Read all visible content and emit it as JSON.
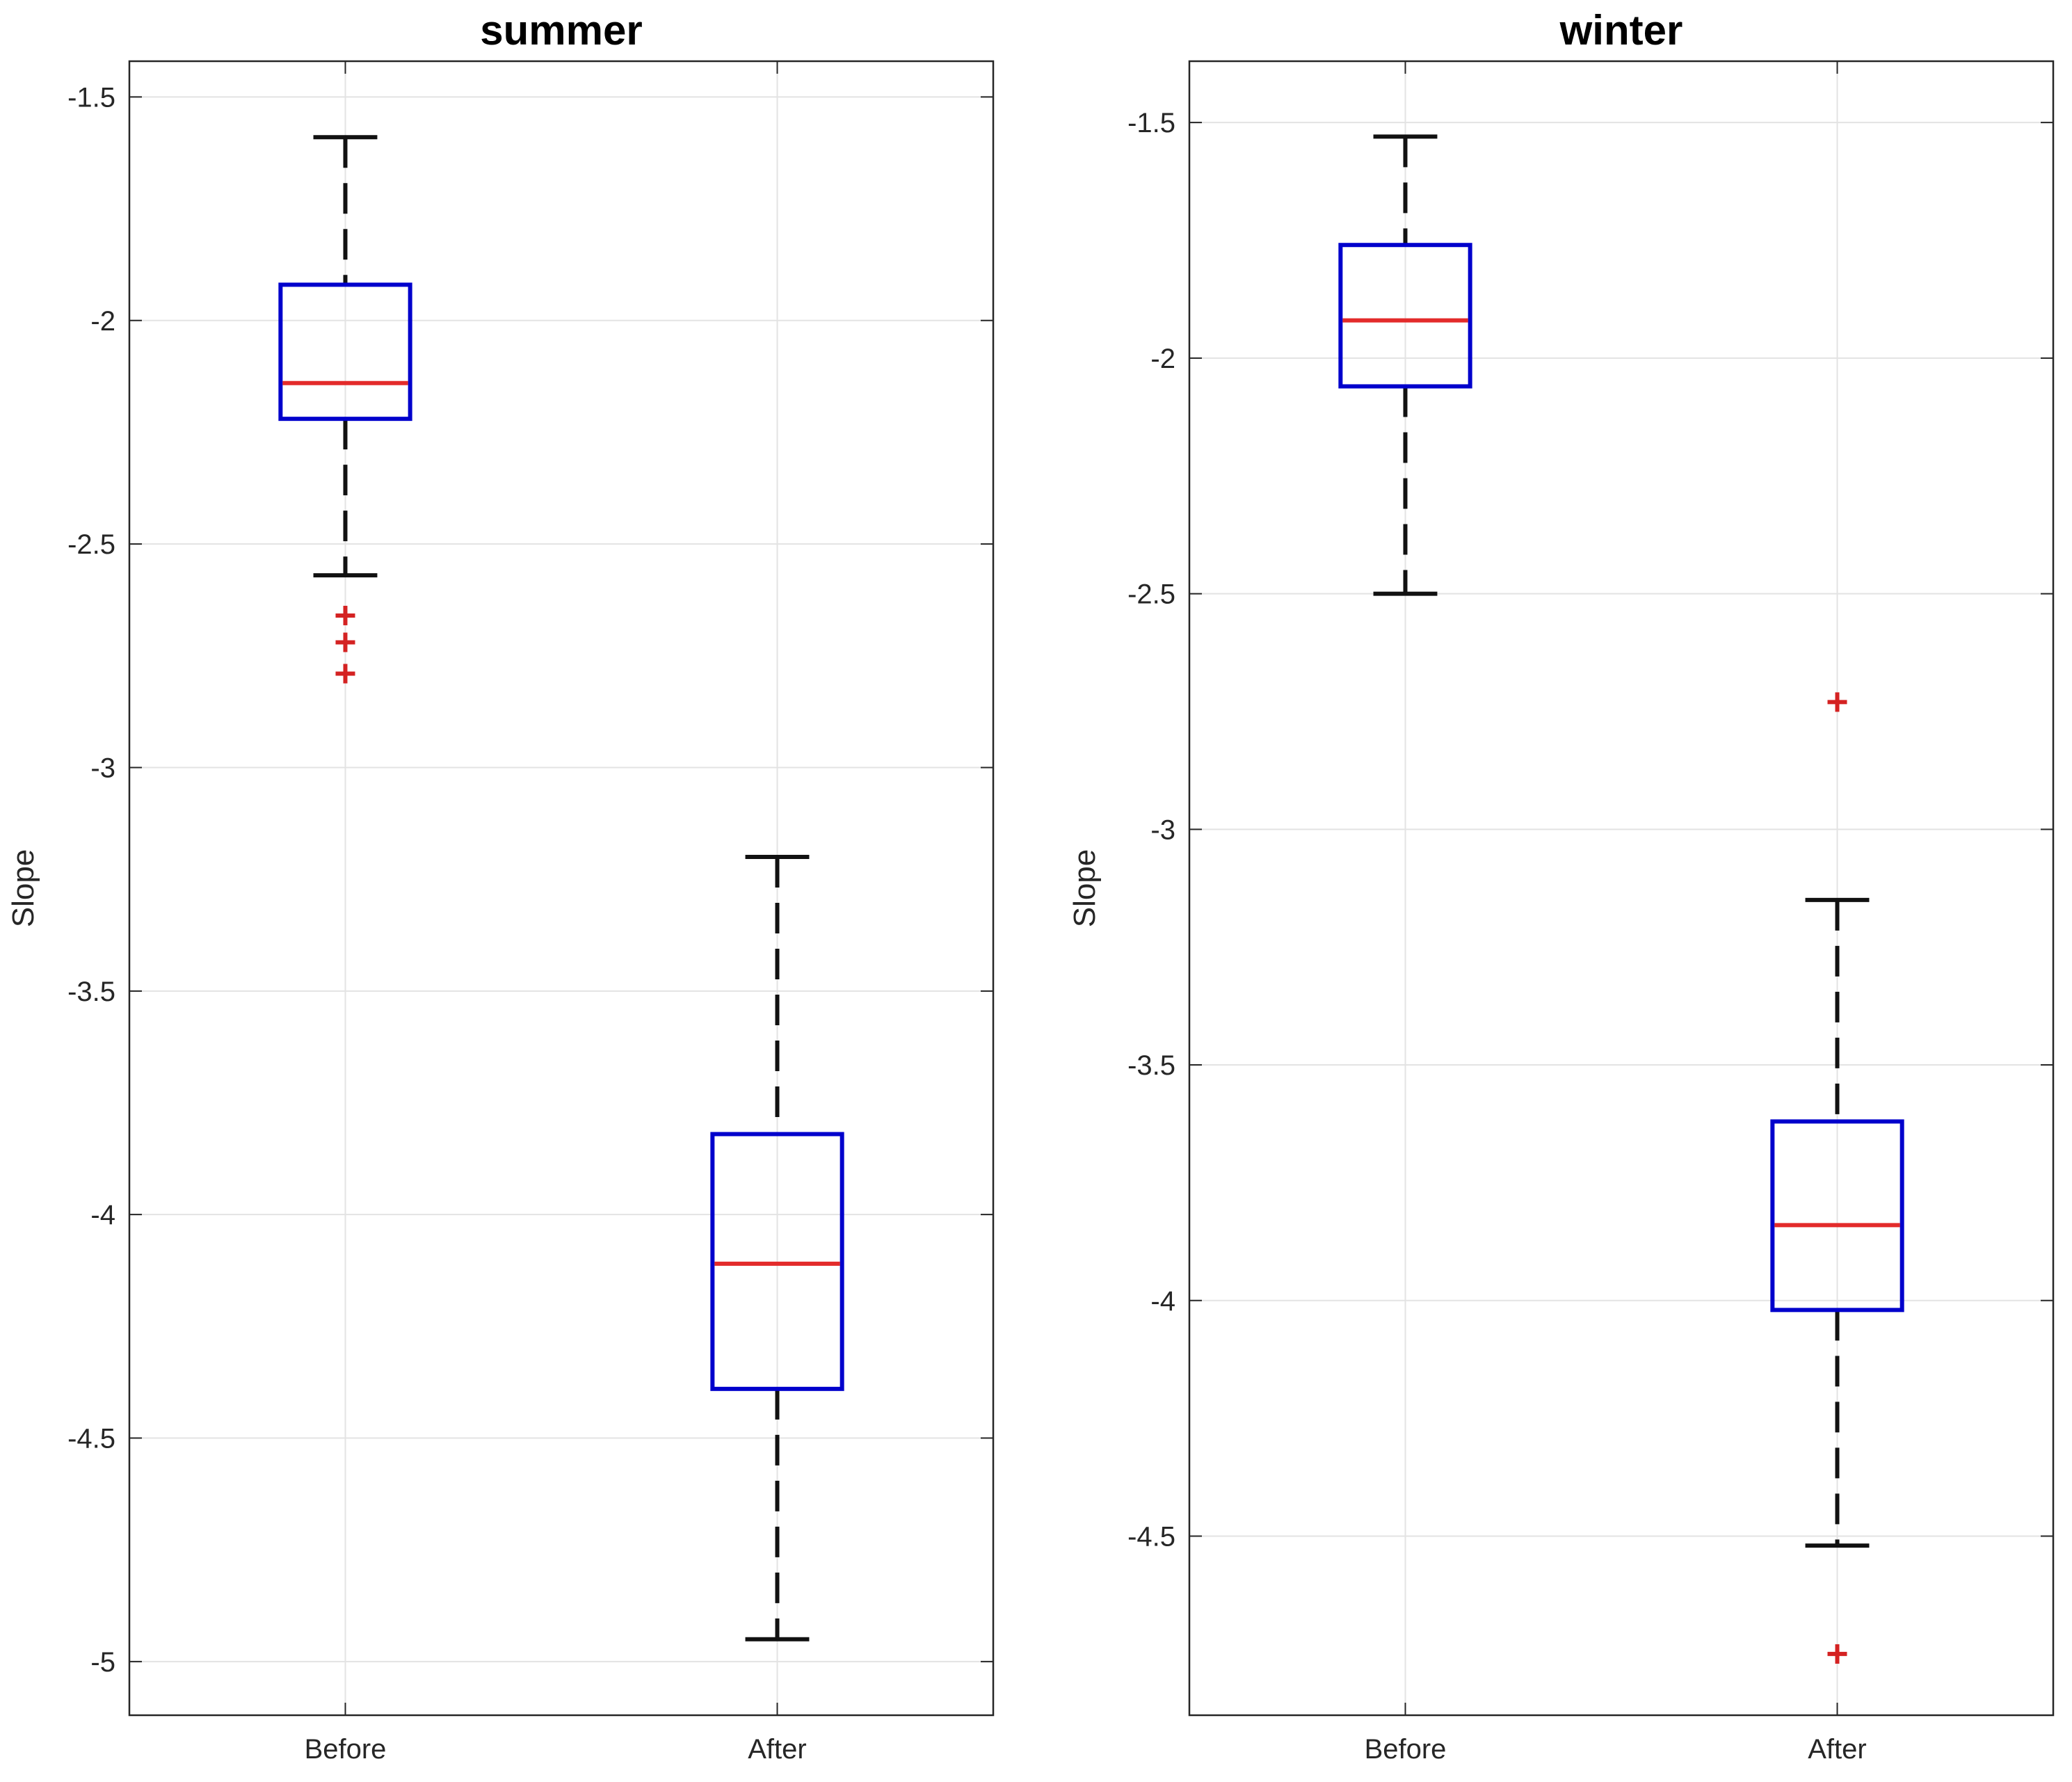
{
  "colors": {
    "box": "#0000cc",
    "median": "#e32b2b",
    "whisker": "#111111",
    "outlier": "#d42222",
    "grid": "#e3e3e3",
    "axes": "#262626"
  },
  "chart_data": [
    {
      "type": "boxplot",
      "title": "summer",
      "xlabel": "",
      "ylabel": "Slope",
      "ylim": [
        -5.12,
        -1.42
      ],
      "yticks": [
        -1.5,
        -2,
        -2.5,
        -3,
        -3.5,
        -4,
        -4.5,
        -5
      ],
      "ytick_labels": [
        "-1.5",
        "-2",
        "-2.5",
        "-3",
        "-3.5",
        "-4",
        "-4.5",
        "-5"
      ],
      "grid": true,
      "categories": [
        "Before",
        "After"
      ],
      "boxes": [
        {
          "category": "Before",
          "whisker_high": -1.59,
          "q3": -1.92,
          "median": -2.14,
          "q1": -2.22,
          "whisker_low": -2.57,
          "outliers": [
            -2.66,
            -2.72,
            -2.79
          ]
        },
        {
          "category": "After",
          "whisker_high": -3.2,
          "q3": -3.82,
          "median": -4.11,
          "q1": -4.39,
          "whisker_low": -4.95,
          "outliers": []
        }
      ]
    },
    {
      "type": "boxplot",
      "title": "winter",
      "xlabel": "",
      "ylabel": "Slope",
      "ylim": [
        -4.88,
        -1.37
      ],
      "yticks": [
        -1.5,
        -2,
        -2.5,
        -3,
        -3.5,
        -4,
        -4.5
      ],
      "ytick_labels": [
        "-1.5",
        "-2",
        "-2.5",
        "-3",
        "-3.5",
        "-4",
        "-4.5"
      ],
      "grid": true,
      "categories": [
        "Before",
        "After"
      ],
      "boxes": [
        {
          "category": "Before",
          "whisker_high": -1.53,
          "q3": -1.76,
          "median": -1.92,
          "q1": -2.06,
          "whisker_low": -2.5,
          "outliers": []
        },
        {
          "category": "After",
          "whisker_high": -3.15,
          "q3": -3.62,
          "median": -3.84,
          "q1": -4.02,
          "whisker_low": -4.52,
          "outliers": [
            -2.73,
            -4.75
          ]
        }
      ]
    }
  ]
}
